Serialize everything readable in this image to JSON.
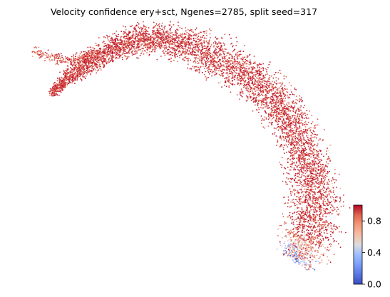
{
  "chart_data": {
    "type": "scatter",
    "title": "Velocity confidence ery+sct, Ngenes=2785, split seed=317",
    "xlabel": "",
    "ylabel": "",
    "axes_visible": false,
    "grid": false,
    "colormap": "coolwarm",
    "color_range": [
      0.0,
      1.0
    ],
    "colorbar": {
      "placement": "bottom-right",
      "ticks": [
        0.0,
        0.4,
        0.8
      ],
      "tick_labels": [
        "0.0",
        "0.4",
        "0.8"
      ]
    },
    "point_count_approx": 9000,
    "value_distribution": "most points near 1.0 (dark red); lower values concentrated at the bottom tip of the arc"
  }
}
